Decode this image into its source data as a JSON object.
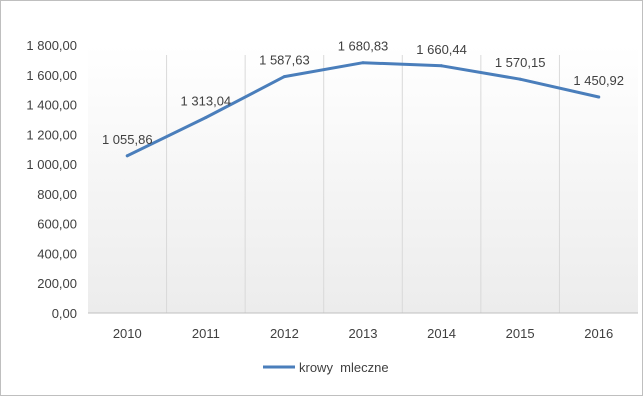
{
  "chart_data": {
    "type": "line",
    "categories": [
      "2010",
      "2011",
      "2012",
      "2013",
      "2014",
      "2015",
      "2016"
    ],
    "series": [
      {
        "name": "krowy  mleczne",
        "values": [
          1055.86,
          1313.04,
          1587.63,
          1680.83,
          1660.44,
          1570.15,
          1450.92
        ],
        "labels": [
          "1 055,86",
          "1 313,04",
          "1 587,63",
          "1 680,83",
          "1 660,44",
          "1 570,15",
          "1 450,92"
        ],
        "color": "#4a7ebb"
      }
    ],
    "ylim": [
      0,
      1800
    ],
    "yticks": [
      {
        "value": 0,
        "label": "0,00"
      },
      {
        "value": 200,
        "label": "200,00"
      },
      {
        "value": 400,
        "label": "400,00"
      },
      {
        "value": 600,
        "label": "600,00"
      },
      {
        "value": 800,
        "label": "800,00"
      },
      {
        "value": 1000,
        "label": "1 000,00"
      },
      {
        "value": 1200,
        "label": "1 200,00"
      },
      {
        "value": 1400,
        "label": "1 400,00"
      },
      {
        "value": 1600,
        "label": "1 600,00"
      },
      {
        "value": 1800,
        "label": "1 800,00"
      }
    ],
    "vertical_gridlines": true,
    "legend_position": "bottom",
    "plot_area_gradient": [
      "#ffffff",
      "#ececec"
    ]
  }
}
